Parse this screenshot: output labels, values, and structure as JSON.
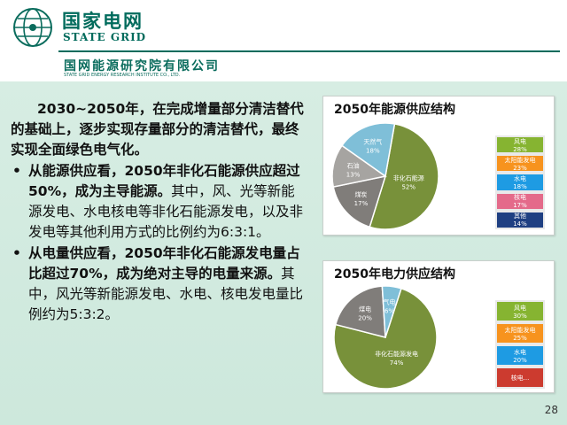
{
  "header": {
    "brand_cn": "国家电网",
    "brand_en": "STATE GRID",
    "institute_cn": "国网能源研究院有限公司",
    "institute_en": "STATE GRID ENERGY RESEARCH INSTITUTE CO., LTD."
  },
  "text": {
    "para1": "2030~2050年，在完成增量部分清洁替代的基础上，逐步实现存量部分的清洁替代，最终实现全面绿色电气化。",
    "bullet1_bold": "从能源供应看，2050年非化石能源供应超过50%，成为主导能源。",
    "bullet1_rest": "其中，风、光等新能源发电、水电核电等非化石能源发电，以及非发电等其他利用方式的比例约为6:3:1。",
    "bullet2_bold": "从电量供应看，2050年非化石能源发电量占比超过70%，成为绝对主导的电量来源。",
    "bullet2_rest": "其中，风光等新能源发电、水电、核电发电量比例约为5:3:2。"
  },
  "page_number": "28",
  "chart_data": [
    {
      "type": "pie",
      "title": "2050年能源供应结构",
      "slices": [
        {
          "label": "非化石能源",
          "value": 52,
          "text": "52%",
          "color": "#78913a"
        },
        {
          "label": "煤炭",
          "value": 17,
          "text": "17%",
          "color": "#807d7a"
        },
        {
          "label": "石油",
          "value": 13,
          "text": "13%",
          "color": "#a6a4a1"
        },
        {
          "label": "天然气",
          "value": 18,
          "text": "18%",
          "color": "#7fbfd8"
        }
      ],
      "breakdown": [
        {
          "label": "风电",
          "value": "28%",
          "color": "#86b431"
        },
        {
          "label": "太阳能发电",
          "value": "23%",
          "color": "#f7931e"
        },
        {
          "label": "水电",
          "value": "18%",
          "color": "#1e9be3"
        },
        {
          "label": "核电",
          "value": "17%",
          "color": "#e46a8a"
        },
        {
          "label": "其他",
          "value": "14%",
          "color": "#1f3f82"
        }
      ]
    },
    {
      "type": "pie",
      "title": "2050年电力供应结构",
      "slices": [
        {
          "label": "非化石能源发电",
          "value": 74,
          "text": "74%",
          "color": "#78913a"
        },
        {
          "label": "煤电",
          "value": 20,
          "text": "20%",
          "color": "#807d7a"
        },
        {
          "label": "气电",
          "value": 6,
          "text": "6%",
          "color": "#7fbfd8"
        }
      ],
      "breakdown": [
        {
          "label": "风电",
          "value": "30%",
          "color": "#86b431"
        },
        {
          "label": "太阳能发电",
          "value": "25%",
          "color": "#f7931e"
        },
        {
          "label": "水电",
          "value": "20%",
          "color": "#1e9be3"
        },
        {
          "label": "核电...",
          "value": "",
          "color": "#cc3b2f"
        }
      ]
    }
  ]
}
